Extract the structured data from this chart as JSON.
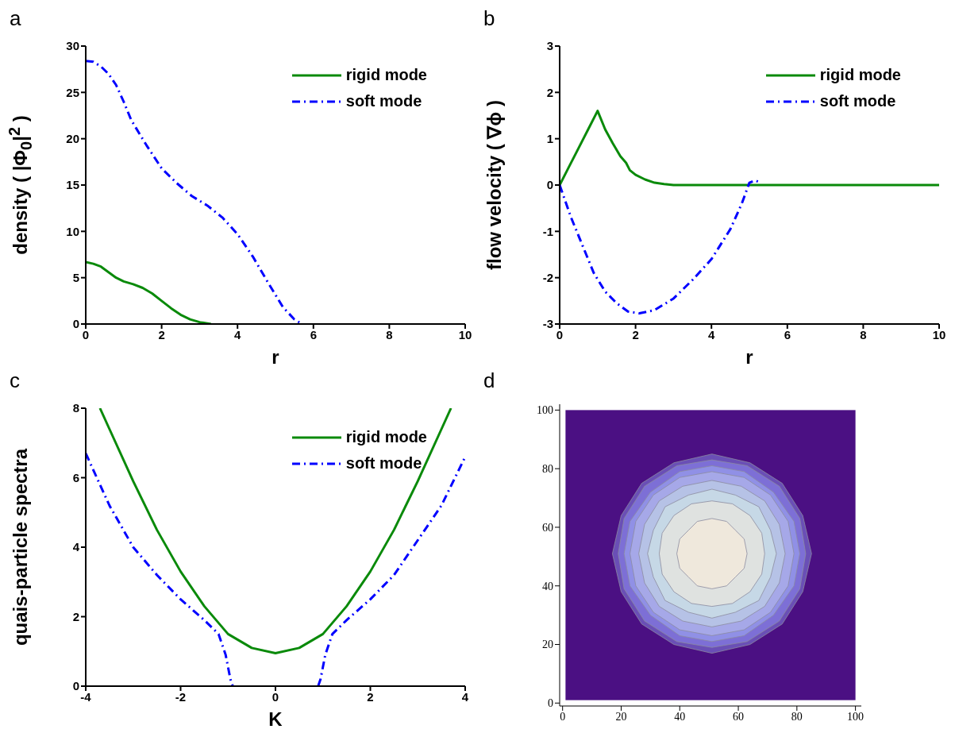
{
  "chart_data": [
    {
      "type": "line",
      "title": "a",
      "xlabel": "r",
      "ylabel": "density ( |Φ$_{0}$|$^{2}$ )",
      "xlim": [
        0,
        10
      ],
      "xticks": [
        0,
        2,
        4,
        6,
        8,
        10
      ],
      "ylim": [
        0,
        30
      ],
      "yticks": [
        0,
        5,
        10,
        15,
        20,
        25,
        30
      ],
      "grid": false,
      "legend": "top right",
      "marker": "none",
      "series": [
        {
          "name": "rigid mode",
          "color": "#0a8a0a",
          "line_style": "solid",
          "x": [
            0,
            0.2,
            0.4,
            0.6,
            0.8,
            1,
            1.25,
            1.5,
            1.75,
            2,
            2.25,
            2.5,
            2.75,
            3,
            3.3
          ],
          "values": [
            6.7,
            6.5,
            6.2,
            5.6,
            5.0,
            4.6,
            4.3,
            3.9,
            3.3,
            2.5,
            1.7,
            1.0,
            0.5,
            0.2,
            0
          ]
        },
        {
          "name": "soft mode",
          "color": "#0000ff",
          "line_style": "dashed",
          "x": [
            0,
            0.2,
            0.4,
            0.6,
            0.8,
            1,
            1.2,
            1.6,
            2,
            2.4,
            2.8,
            3.2,
            3.6,
            4,
            4.4,
            4.8,
            5.2,
            5.5,
            5.7
          ],
          "values": [
            28.4,
            28.3,
            27.8,
            27,
            25.8,
            24,
            22,
            19.3,
            16.8,
            15.2,
            13.8,
            12.8,
            11.5,
            9.7,
            7.3,
            4.5,
            1.8,
            0.5,
            0
          ]
        }
      ]
    },
    {
      "type": "line",
      "title": "b",
      "xlabel": "r",
      "ylabel": "flow velocity ( ∇ϕ )",
      "xlim": [
        0,
        10
      ],
      "xticks": [
        0,
        2,
        4,
        6,
        8,
        10
      ],
      "ylim": [
        -3,
        3
      ],
      "yticks": [
        -3,
        -2,
        -1,
        0,
        1,
        2,
        3
      ],
      "grid": false,
      "legend": "top right",
      "marker": "none",
      "series": [
        {
          "name": "rigid mode",
          "color": "#0a8a0a",
          "line_style": "solid",
          "x": [
            0,
            0.25,
            0.5,
            0.75,
            1,
            1.2,
            1.4,
            1.6,
            1.75,
            1.85,
            2,
            2.25,
            2.5,
            2.75,
            3,
            10
          ],
          "values": [
            0,
            0.4,
            0.8,
            1.2,
            1.6,
            1.2,
            0.9,
            0.62,
            0.48,
            0.32,
            0.22,
            0.12,
            0.05,
            0.02,
            0,
            0
          ]
        },
        {
          "name": "soft mode",
          "color": "#0000ff",
          "line_style": "dashed",
          "x": [
            0,
            0.3,
            0.6,
            0.9,
            1.2,
            1.5,
            1.8,
            2.1,
            2.5,
            3,
            3.5,
            4,
            4.5,
            4.8,
            5,
            5.15,
            5.3
          ],
          "values": [
            0,
            -0.7,
            -1.3,
            -1.9,
            -2.3,
            -2.55,
            -2.73,
            -2.77,
            -2.7,
            -2.45,
            -2.05,
            -1.6,
            -0.95,
            -0.4,
            0.05,
            0.1,
            0.05
          ]
        }
      ]
    },
    {
      "type": "line",
      "title": "c",
      "xlabel": "K",
      "ylabel": "quais-particle spectra",
      "xlim": [
        -4,
        4
      ],
      "xticks": [
        -4,
        -2,
        0,
        2,
        4
      ],
      "ylim": [
        0,
        8
      ],
      "yticks": [
        0,
        2,
        4,
        6,
        8
      ],
      "grid": false,
      "legend": "top right",
      "marker": "none",
      "series": [
        {
          "name": "rigid mode",
          "color": "#0a8a0a",
          "line_style": "solid",
          "x": [
            -3.7,
            -3.5,
            -3,
            -2.5,
            -2,
            -1.5,
            -1,
            -0.5,
            0,
            0.5,
            1,
            1.5,
            2,
            2.5,
            3,
            3.5,
            3.7
          ],
          "values": [
            8,
            7.4,
            5.9,
            4.5,
            3.3,
            2.3,
            1.5,
            1.1,
            0.95,
            1.1,
            1.5,
            2.3,
            3.3,
            4.5,
            5.9,
            7.4,
            8
          ]
        },
        {
          "name": "soft mode",
          "color": "#0000ff",
          "line_style": "dashed",
          "x": [
            -4,
            -3.5,
            -3,
            -2.5,
            -2,
            -1.5,
            -1.2,
            -1.05,
            -0.95,
            -0.9,
            0,
            0.9,
            0.95,
            1.05,
            1.2,
            1.5,
            2,
            2.5,
            3,
            3.5,
            4
          ],
          "values": [
            6.7,
            5.2,
            4.0,
            3.2,
            2.5,
            1.9,
            1.5,
            0.9,
            0.2,
            0,
            null,
            0,
            0.2,
            0.9,
            1.5,
            1.9,
            2.5,
            3.2,
            4.2,
            5.2,
            6.6
          ]
        }
      ]
    },
    {
      "type": "area",
      "title": "d",
      "xlim": [
        -1,
        102
      ],
      "xticks": [
        0,
        20,
        40,
        60,
        80,
        100
      ],
      "ylim": [
        -1,
        102
      ],
      "yticks": [
        0,
        20,
        40,
        60,
        80,
        100
      ],
      "series": [
        {
          "color": "#6a4fb6",
          "x": [
            85,
            82,
            75,
            64,
            51,
            38,
            27,
            20,
            17,
            20,
            27,
            38,
            51,
            64,
            75,
            82,
            85
          ],
          "values": [
            51,
            64,
            75,
            82,
            85,
            82,
            75,
            64,
            51,
            38,
            27,
            20,
            17,
            20,
            27,
            38,
            51
          ]
        },
        {
          "color": "#7d6fd6",
          "x": [
            83,
            81,
            74,
            63,
            51,
            39,
            28,
            21,
            19,
            21,
            28,
            39,
            51,
            63,
            74,
            81,
            83
          ],
          "values": [
            51,
            63,
            74,
            81,
            83,
            81,
            74,
            63,
            51,
            39,
            28,
            21,
            19,
            21,
            28,
            39,
            51
          ]
        },
        {
          "color": "#9090e6",
          "x": [
            81,
            79,
            72,
            62,
            51,
            40,
            30,
            23,
            21,
            23,
            30,
            40,
            51,
            62,
            72,
            79,
            81
          ],
          "values": [
            51,
            62,
            72,
            79,
            81,
            79,
            72,
            62,
            51,
            40,
            30,
            23,
            21,
            23,
            30,
            40,
            51
          ]
        },
        {
          "color": "#a6a8e8",
          "x": [
            79,
            77,
            71,
            62,
            51,
            40,
            31,
            25,
            23,
            25,
            31,
            40,
            51,
            62,
            71,
            77,
            79
          ],
          "values": [
            51,
            62,
            71,
            77,
            79,
            77,
            71,
            62,
            51,
            40,
            31,
            25,
            23,
            25,
            31,
            40,
            51
          ]
        },
        {
          "color": "#b6c2e6",
          "x": [
            76,
            74,
            69,
            61,
            51,
            41,
            33,
            28,
            26,
            28,
            33,
            41,
            51,
            61,
            69,
            74,
            76
          ],
          "values": [
            51,
            61,
            69,
            74,
            76,
            74,
            69,
            61,
            51,
            41,
            33,
            28,
            26,
            28,
            33,
            41,
            51
          ]
        },
        {
          "color": "#c6d8e6",
          "x": [
            73,
            71,
            67,
            59,
            51,
            43,
            35,
            31,
            29,
            31,
            35,
            43,
            51,
            59,
            67,
            71,
            73
          ],
          "values": [
            51,
            59,
            67,
            71,
            73,
            71,
            67,
            59,
            51,
            43,
            35,
            31,
            29,
            31,
            35,
            43,
            51
          ]
        },
        {
          "color": "#dfe2e0",
          "x": [
            69,
            68,
            64,
            58,
            51,
            44,
            38,
            34,
            33,
            34,
            38,
            44,
            51,
            58,
            64,
            68,
            69
          ],
          "values": [
            51,
            58,
            64,
            68,
            69,
            68,
            64,
            58,
            51,
            44,
            38,
            34,
            33,
            34,
            38,
            44,
            51
          ]
        },
        {
          "color": "#efe8dc",
          "x": [
            63,
            62,
            59,
            56,
            51,
            46,
            43,
            40,
            39,
            40,
            43,
            46,
            51,
            56,
            59,
            62,
            63
          ],
          "values": [
            51,
            56,
            59,
            62,
            63,
            62,
            59,
            56,
            51,
            46,
            43,
            40,
            39,
            40,
            43,
            46,
            51
          ]
        }
      ]
    }
  ]
}
